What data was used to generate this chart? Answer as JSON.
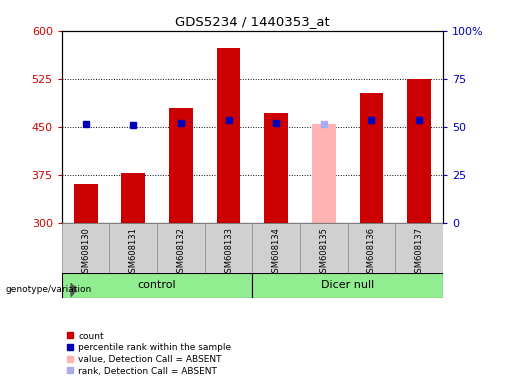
{
  "title": "GDS5234 / 1440353_at",
  "samples": [
    "GSM608130",
    "GSM608131",
    "GSM608132",
    "GSM608133",
    "GSM608134",
    "GSM608135",
    "GSM608136",
    "GSM608137"
  ],
  "count_values": [
    360,
    378,
    480,
    573,
    472,
    null,
    503,
    524
  ],
  "count_absent": [
    null,
    null,
    null,
    null,
    null,
    455,
    null,
    null
  ],
  "percentile_values": [
    455,
    452,
    456,
    460,
    456,
    null,
    460,
    460
  ],
  "percentile_absent": [
    null,
    null,
    null,
    null,
    null,
    455,
    null,
    null
  ],
  "ylim_left": [
    300,
    600
  ],
  "ylim_right": [
    0,
    100
  ],
  "yticks_left": [
    300,
    375,
    450,
    525,
    600
  ],
  "yticks_right": [
    0,
    25,
    50,
    75,
    100
  ],
  "bar_color_normal": "#cc0000",
  "bar_color_absent": "#ffb3b3",
  "dot_color_normal": "#0000bb",
  "dot_color_absent": "#aaaaee",
  "group_bg": "#90ee90",
  "sample_bg": "#d0d0d0",
  "left_axis_color": "#cc0000",
  "right_axis_color": "#0000bb",
  "group_label_control": "control",
  "group_label_dicer": "Dicer null",
  "legend_items": [
    "count",
    "percentile rank within the sample",
    "value, Detection Call = ABSENT",
    "rank, Detection Call = ABSENT"
  ],
  "bar_width": 0.5,
  "dot_size": 5,
  "control_indices": [
    0,
    1,
    2,
    3
  ],
  "dicer_indices": [
    4,
    5,
    6,
    7
  ]
}
